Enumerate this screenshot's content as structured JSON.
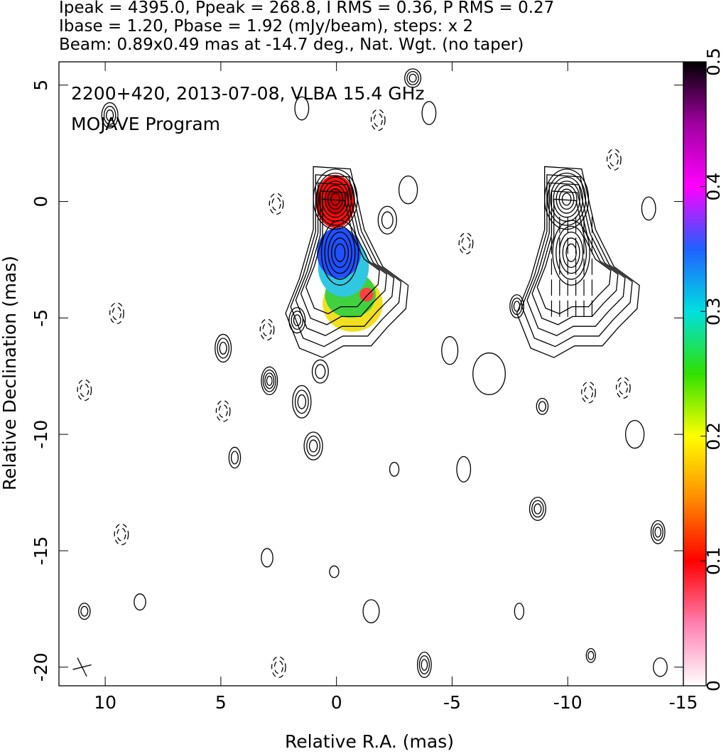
{
  "chart_data": {
    "type": "contour",
    "header": [
      "Ipeak = 4395.0, Ppeak = 268.8, I RMS = 0.36, P RMS = 0.27",
      "Ibase = 1.20, Pbase = 1.92 (mJy/beam), steps: x 2",
      "Beam: 0.89x0.49 mas at -14.7 deg., Nat. Wgt. (no taper)"
    ],
    "annotations": [
      "2200+420, 2013-07-08, VLBA 15.4 GHz",
      "MOJAVE Program"
    ],
    "xlabel": "Relative R.A. (mas)",
    "ylabel": "Relative Declination (mas)",
    "xlim": [
      12,
      -15
    ],
    "ylim": [
      -20.8,
      6
    ],
    "xticks": [
      10,
      5,
      0,
      -5,
      -10,
      -15
    ],
    "yticks": [
      5,
      0,
      -5,
      -10,
      -15,
      -20
    ],
    "colorbar": {
      "lim": [
        0,
        0.5
      ],
      "ticks": [
        0,
        0.1,
        0.2,
        0.3,
        0.4,
        0.5
      ]
    }
  }
}
